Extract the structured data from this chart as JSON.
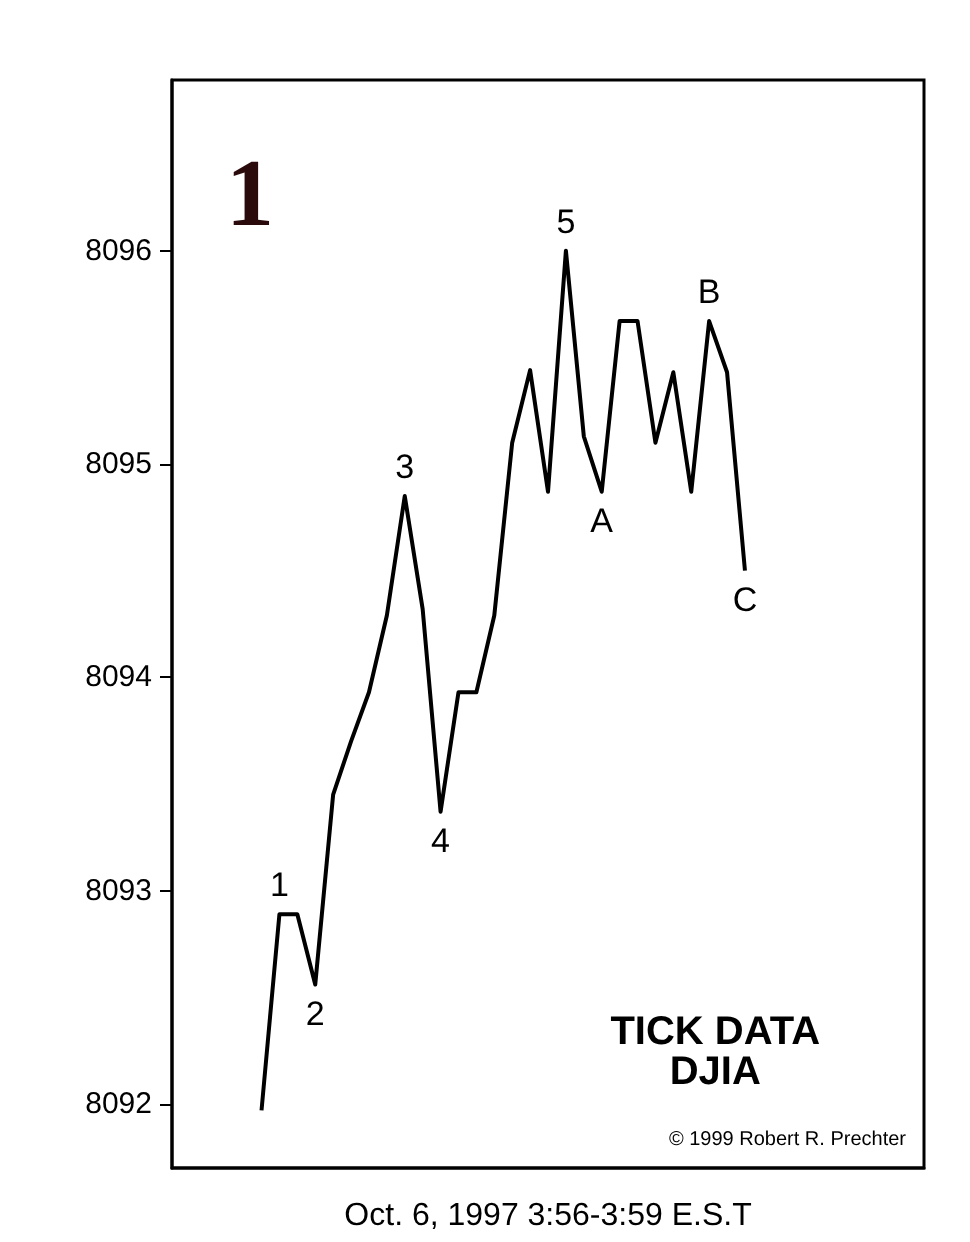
{
  "chart_data": {
    "type": "line",
    "title": "1",
    "xlabel": "Oct. 6, 1997 3:56-3:59 E.S.T",
    "annotations": [
      {
        "text": "1",
        "y": 8092.89
      },
      {
        "text": "2",
        "y": 8092.56
      },
      {
        "text": "3",
        "y": 8094.85
      },
      {
        "text": "4",
        "y": 8093.37
      },
      {
        "text": "5",
        "y": 8096.0
      },
      {
        "text": "A",
        "y": 8094.87
      },
      {
        "text": "B",
        "y": 8095.67
      },
      {
        "text": "C",
        "y": 8094.5
      },
      "TICK DATA\nDJIA",
      "© 1999 Robert R. Prechter"
    ],
    "categories": [
      null,
      null,
      null,
      null,
      null,
      null,
      null,
      null,
      null,
      null,
      null,
      null,
      null,
      null,
      null,
      null,
      null,
      null,
      null,
      null,
      null,
      null,
      null,
      null,
      null,
      null,
      null,
      null
    ],
    "series": [
      {
        "color": "#000000",
        "values": [
          8091.97,
          8092.89,
          8092.89,
          8092.56,
          8093.45,
          8093.7,
          8093.93,
          8094.29,
          8094.85,
          8094.32,
          8093.37,
          8093.93,
          8093.93,
          8094.29,
          8095.1,
          8095.44,
          8094.87,
          8096.0,
          8095.13,
          8094.87,
          8095.67,
          8095.67,
          8095.1,
          8095.43,
          8094.87,
          8095.67,
          8095.43,
          8094.5
        ]
      }
    ],
    "ylim": [
      8091.7,
      8096.8
    ],
    "yticks": [
      8092,
      8093,
      8094,
      8095,
      8096
    ],
    "tick_labels": "y",
    "marker": "none",
    "line_style": "solid"
  }
}
